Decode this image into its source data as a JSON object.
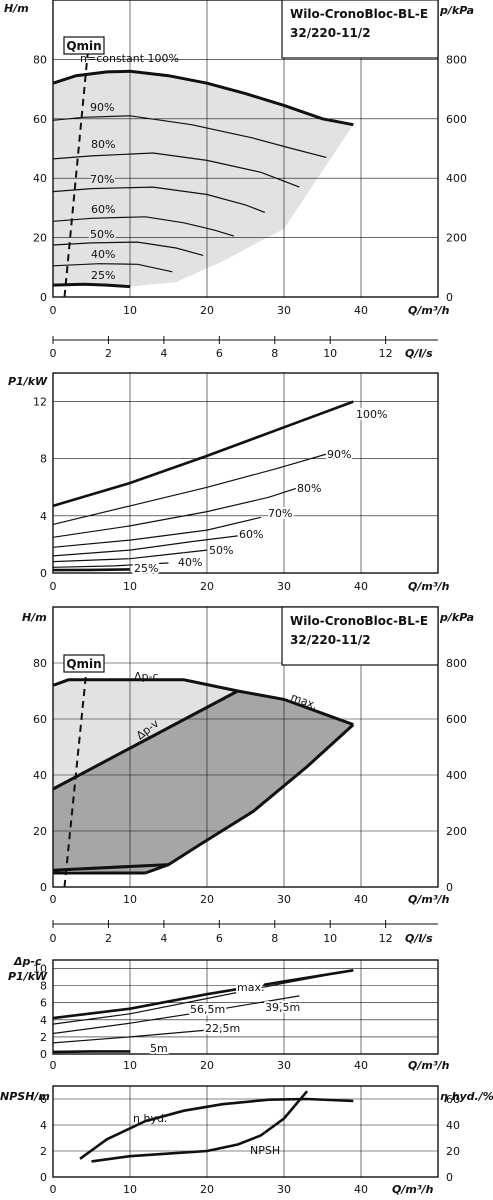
{
  "charts": {
    "head1": {
      "type": "line",
      "title": [
        "Wilo-CronoBloc-BL-E",
        "32/220-11/2"
      ],
      "ylabel": "H/m",
      "y2label": "p/kPa",
      "qmin_label": "Qmin",
      "xticks": [
        "0",
        "10",
        "20",
        "30",
        "40"
      ],
      "yticks": [
        "0",
        "20",
        "40",
        "60",
        "80"
      ],
      "y2ticks": [
        "0",
        "200",
        "400",
        "600",
        "800"
      ],
      "xlim": [
        0,
        50
      ],
      "ylim": [
        0,
        100
      ],
      "region_color": "#e2e2e2",
      "curves": [
        {
          "name": "n=constant 100%",
          "points": [
            [
              0,
              72
            ],
            [
              3,
              74.5
            ],
            [
              7,
              75.8
            ],
            [
              10,
              76
            ],
            [
              15,
              74.5
            ],
            [
              20,
              72
            ],
            [
              25,
              68.5
            ],
            [
              30,
              64.5
            ],
            [
              35,
              60
            ],
            [
              39,
              58
            ]
          ]
        },
        {
          "name": "90%",
          "points": [
            [
              0,
              59.5
            ],
            [
              4,
              60.5
            ],
            [
              10,
              61
            ],
            [
              18,
              58
            ],
            [
              26,
              53.5
            ],
            [
              31,
              50
            ],
            [
              35.5,
              47
            ]
          ]
        },
        {
          "name": "80%",
          "points": [
            [
              0,
              46.5
            ],
            [
              5,
              47.5
            ],
            [
              13,
              48.5
            ],
            [
              20,
              46
            ],
            [
              27,
              42
            ],
            [
              32,
              37
            ]
          ]
        },
        {
          "name": "70%",
          "points": [
            [
              0,
              35.5
            ],
            [
              5,
              36.5
            ],
            [
              13,
              37
            ],
            [
              20,
              34.5
            ],
            [
              25,
              31
            ],
            [
              27.5,
              28.5
            ]
          ]
        },
        {
          "name": "60%",
          "points": [
            [
              0,
              25.5
            ],
            [
              5,
              26.5
            ],
            [
              12,
              27
            ],
            [
              17,
              25
            ],
            [
              21,
              22.5
            ],
            [
              23.5,
              20.5
            ]
          ]
        },
        {
          "name": "50%",
          "points": [
            [
              0,
              17.5
            ],
            [
              5,
              18.2
            ],
            [
              11,
              18.5
            ],
            [
              16,
              16.5
            ],
            [
              19.5,
              14
            ]
          ]
        },
        {
          "name": "40%",
          "points": [
            [
              0,
              10.5
            ],
            [
              6,
              11.2
            ],
            [
              11,
              11
            ],
            [
              15.5,
              8.5
            ]
          ]
        },
        {
          "name": "25%",
          "points": [
            [
              0,
              4
            ],
            [
              4,
              4.3
            ],
            [
              7,
              4
            ],
            [
              10,
              3.5
            ]
          ]
        }
      ],
      "qmin_line": [
        [
          1.5,
          0
        ],
        [
          4.5,
          82
        ]
      ]
    },
    "flow_scale": {
      "unit_label": "Q/l/s",
      "ticks": [
        "0",
        "2",
        "4",
        "6",
        "8",
        "10",
        "12"
      ]
    },
    "power1": {
      "type": "line",
      "ylabel": "P1/kW",
      "xlabel": "Q/m³/h",
      "xticks": [
        "0",
        "10",
        "20",
        "30",
        "40"
      ],
      "yticks": [
        "0",
        "4",
        "8",
        "12"
      ],
      "xlim": [
        0,
        50
      ],
      "ylim": [
        0,
        14
      ],
      "curves": [
        {
          "name": "100%",
          "points": [
            [
              0,
              4.7
            ],
            [
              10,
              6.3
            ],
            [
              20,
              8.2
            ],
            [
              30,
              10.2
            ],
            [
              39,
              12
            ]
          ]
        },
        {
          "name": "90%",
          "points": [
            [
              0,
              3.4
            ],
            [
              10,
              4.7
            ],
            [
              20,
              6.0
            ],
            [
              29,
              7.3
            ],
            [
              36,
              8.4
            ]
          ]
        },
        {
          "name": "80%",
          "points": [
            [
              0,
              2.5
            ],
            [
              10,
              3.3
            ],
            [
              20,
              4.3
            ],
            [
              28,
              5.3
            ],
            [
              32,
              6.0
            ]
          ]
        },
        {
          "name": "70%",
          "points": [
            [
              0,
              1.8
            ],
            [
              10,
              2.3
            ],
            [
              20,
              3.0
            ],
            [
              27,
              3.9
            ]
          ]
        },
        {
          "name": "60%",
          "points": [
            [
              0,
              1.2
            ],
            [
              10,
              1.6
            ],
            [
              18,
              2.2
            ],
            [
              24,
              2.6
            ]
          ]
        },
        {
          "name": "50%",
          "points": [
            [
              0,
              0.8
            ],
            [
              10,
              1.0
            ],
            [
              15,
              1.3
            ],
            [
              20,
              1.6
            ]
          ]
        },
        {
          "name": "40%",
          "points": [
            [
              0,
              0.4
            ],
            [
              8,
              0.5
            ],
            [
              13,
              0.65
            ],
            [
              15,
              0.7
            ]
          ]
        },
        {
          "name": "25%",
          "points": [
            [
              0,
              0.2
            ],
            [
              5,
              0.22
            ],
            [
              10,
              0.25
            ]
          ]
        }
      ]
    },
    "head2": {
      "type": "area",
      "title": [
        "Wilo-CronoBloc-BL-E",
        "32/220-11/2"
      ],
      "ylabel": "H/m",
      "y2label": "p/kPa",
      "qmin_label": "Qmin",
      "xlabel": "Q/m³/h",
      "xticks": [
        "0",
        "10",
        "20",
        "30",
        "40"
      ],
      "yticks": [
        "0",
        "20",
        "40",
        "60",
        "80"
      ],
      "y2ticks": [
        "0",
        "200",
        "400",
        "600",
        "800"
      ],
      "xlim": [
        0,
        50
      ],
      "ylim": [
        0,
        100
      ],
      "light_color": "#e2e2e2",
      "dark_color": "#a6a6a6",
      "labels": {
        "dpc": "Δp-c",
        "dpv": "Δp-v",
        "max": "max."
      },
      "light_region": [
        [
          0,
          72
        ],
        [
          2,
          74
        ],
        [
          17,
          74
        ],
        [
          24,
          70
        ],
        [
          39,
          58
        ],
        [
          24,
          70
        ],
        [
          0,
          35
        ]
      ],
      "dark_region": [
        [
          0,
          35
        ],
        [
          24,
          70
        ],
        [
          30,
          67
        ],
        [
          36,
          61
        ],
        [
          39,
          58
        ],
        [
          33,
          43
        ],
        [
          26,
          27
        ],
        [
          19,
          15
        ],
        [
          15,
          8
        ],
        [
          12,
          5
        ],
        [
          0,
          6
        ]
      ],
      "max_curve": [
        [
          0,
          72
        ],
        [
          2,
          74
        ],
        [
          17,
          74
        ],
        [
          24,
          70
        ],
        [
          30,
          67
        ],
        [
          36,
          61
        ],
        [
          39,
          58
        ]
      ],
      "dpv_line": [
        [
          0,
          35
        ],
        [
          24,
          70
        ]
      ],
      "right_edge": [
        [
          39,
          58
        ],
        [
          33,
          43
        ],
        [
          26,
          27
        ],
        [
          19,
          15
        ],
        [
          15,
          8
        ],
        [
          12,
          5
        ]
      ],
      "bottom_lines": [
        [
          [
            0,
            6
          ],
          [
            15,
            8
          ]
        ],
        [
          [
            0,
            5
          ],
          [
            12,
            5
          ]
        ]
      ],
      "qmin_line": [
        [
          1.5,
          0
        ],
        [
          4.5,
          82
        ]
      ]
    },
    "power2": {
      "type": "line",
      "ylabel": "P1/kW",
      "mode_label": "Δp-c",
      "xlabel": "Q/m³/h",
      "xticks": [
        "0",
        "10",
        "20",
        "30",
        "40"
      ],
      "yticks": [
        "0",
        "2",
        "4",
        "6",
        "8",
        "10"
      ],
      "xlim": [
        0,
        50
      ],
      "ylim": [
        0,
        11
      ],
      "curves": [
        {
          "name": "max.",
          "points": [
            [
              0,
              4.2
            ],
            [
              10,
              5.3
            ],
            [
              20,
              7.0
            ],
            [
              30,
              8.5
            ],
            [
              39,
              9.8
            ]
          ]
        },
        {
          "name": "56,5m",
          "points": [
            [
              0,
              3.5
            ],
            [
              10,
              4.7
            ],
            [
              20,
              6.5
            ],
            [
              30,
              8.3
            ],
            [
              39,
              9.8
            ]
          ]
        },
        {
          "name": "39,5m",
          "points": [
            [
              0,
              2.4
            ],
            [
              10,
              3.6
            ],
            [
              20,
              5.0
            ],
            [
              32,
              6.8
            ]
          ]
        },
        {
          "name": "22,5m",
          "points": [
            [
              0,
              1.3
            ],
            [
              10,
              2.0
            ],
            [
              20,
              2.8
            ],
            [
              24,
              3.3
            ]
          ]
        },
        {
          "name": "5m",
          "points": [
            [
              0,
              0.25
            ],
            [
              5,
              0.3
            ],
            [
              10,
              0.3
            ]
          ]
        }
      ]
    },
    "npsh": {
      "type": "line",
      "ylabel": "NPSH/m",
      "y2label": "η hyd./%",
      "xlabel": "Q/m³/h",
      "xticks": [
        "0",
        "10",
        "20",
        "30",
        "40"
      ],
      "yticks": [
        "0",
        "2",
        "4",
        "6"
      ],
      "y2ticks": [
        "0",
        "20",
        "40",
        "60"
      ],
      "xlim": [
        0,
        50
      ],
      "ylim": [
        0,
        7
      ],
      "curves": [
        {
          "name": "η hyd.",
          "points": [
            [
              3.5,
              1.4
            ],
            [
              7,
              2.9
            ],
            [
              12,
              4.3
            ],
            [
              17,
              5.1
            ],
            [
              22,
              5.6
            ],
            [
              28,
              5.95
            ],
            [
              33,
              6.0
            ],
            [
              39,
              5.85
            ]
          ]
        },
        {
          "name": "NPSH",
          "points": [
            [
              5,
              1.2
            ],
            [
              10,
              1.6
            ],
            [
              15,
              1.8
            ],
            [
              20,
              2.0
            ],
            [
              24,
              2.5
            ],
            [
              27,
              3.2
            ],
            [
              30,
              4.5
            ],
            [
              33,
              6.6
            ]
          ]
        }
      ]
    }
  }
}
